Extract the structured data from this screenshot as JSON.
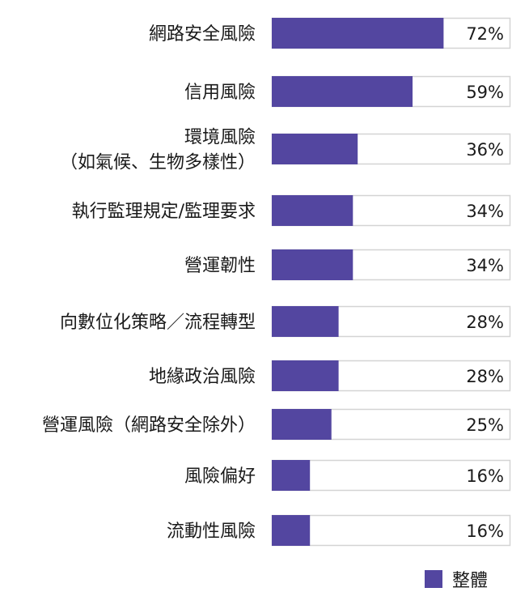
{
  "chart_data": {
    "type": "bar",
    "orientation": "horizontal",
    "categories": [
      [
        "網路安全風險"
      ],
      [
        "信用風險"
      ],
      [
        "環境風險",
        "（如氣候、生物多樣性）"
      ],
      [
        "執行監理規定/監理要求"
      ],
      [
        "營運韌性"
      ],
      [
        "向數位化策略／流程轉型"
      ],
      [
        "地緣政治風險"
      ],
      [
        "營運風險（網路安全除外）"
      ],
      [
        "風險偏好"
      ],
      [
        "流動性風險"
      ]
    ],
    "series": [
      {
        "name": "整體",
        "values": [
          72,
          59,
          36,
          34,
          34,
          28,
          28,
          25,
          16,
          16
        ],
        "labels": [
          "72%",
          "59%",
          "36%",
          "34%",
          "34%",
          "28%",
          "28%",
          "25%",
          "16%",
          "16%"
        ]
      }
    ],
    "xlim": [
      0,
      100
    ],
    "grid": false,
    "legend_position": "bottom-right",
    "colors": {
      "bar": "#5346a0",
      "track_border": "#d4d4d4",
      "text": "#1a1a1a"
    }
  }
}
